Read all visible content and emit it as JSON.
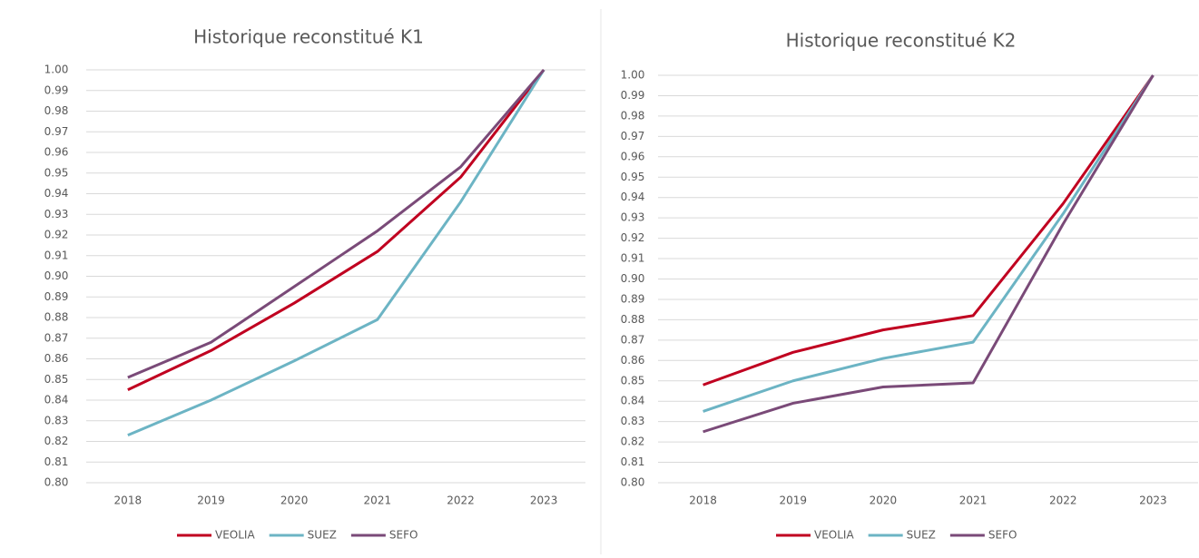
{
  "chart_data": [
    {
      "type": "line",
      "title": "Historique reconstitué K1",
      "categories": [
        "2018",
        "2019",
        "2020",
        "2021",
        "2022",
        "2023"
      ],
      "series": [
        {
          "name": "VEOLIA",
          "color": "#c00020",
          "values": [
            0.845,
            0.864,
            0.887,
            0.912,
            0.948,
            1.0
          ]
        },
        {
          "name": "SUEZ",
          "color": "#6cb4c4",
          "values": [
            0.823,
            0.84,
            0.859,
            0.879,
            0.936,
            1.0
          ]
        },
        {
          "name": "SEFO",
          "color": "#7a4a78",
          "values": [
            0.851,
            0.868,
            0.895,
            0.922,
            0.953,
            1.0
          ]
        }
      ],
      "ylim": [
        0.8,
        1.0
      ],
      "yticks": [
        {
          "value": 0.8,
          "label": "0.80"
        },
        0.81,
        0.82,
        0.83,
        0.84,
        0.85,
        0.86,
        0.87,
        0.88,
        0.89,
        {
          "value": 0.9,
          "label": "0.90"
        },
        0.91,
        0.92,
        0.93,
        0.94,
        0.95,
        0.96,
        0.97,
        0.98,
        0.99,
        {
          "value": 1.0,
          "label": "1.00"
        }
      ],
      "grid": true,
      "legend": "bottom"
    },
    {
      "type": "line",
      "title": "Historique reconstitué K2",
      "categories": [
        "2018",
        "2019",
        "2020",
        "2021",
        "2022",
        "2023"
      ],
      "series": [
        {
          "name": "VEOLIA",
          "color": "#c00020",
          "values": [
            0.848,
            0.864,
            0.875,
            0.882,
            0.937,
            1.0
          ]
        },
        {
          "name": "SUEZ",
          "color": "#6cb4c4",
          "values": [
            0.835,
            0.85,
            0.861,
            0.869,
            0.932,
            1.0
          ]
        },
        {
          "name": "SEFO",
          "color": "#7a4a78",
          "values": [
            0.825,
            0.839,
            0.847,
            0.849,
            0.927,
            1.0
          ]
        }
      ],
      "ylim": [
        0.8,
        1.0
      ],
      "yticks": [
        {
          "value": 0.8,
          "label": "0.80"
        },
        0.81,
        0.82,
        0.83,
        0.84,
        0.85,
        0.86,
        0.87,
        0.88,
        0.89,
        {
          "value": 0.9,
          "label": "0.90"
        },
        0.91,
        0.92,
        0.93,
        0.94,
        0.95,
        0.96,
        0.97,
        0.98,
        0.99,
        {
          "value": 1.0,
          "label": "1.00"
        }
      ],
      "grid": true,
      "legend": "bottom"
    }
  ]
}
